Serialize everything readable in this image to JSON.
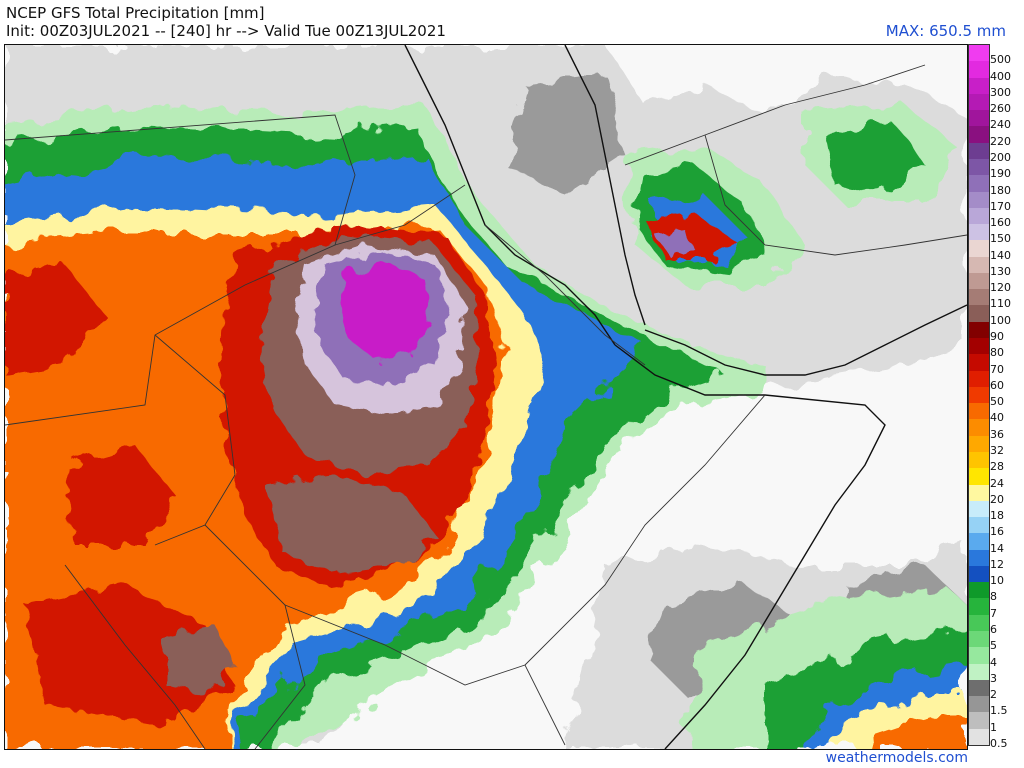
{
  "header": {
    "title": "NCEP GFS Total Precipitation [mm]",
    "subtitle": "Init: 00Z03JUL2021 -- [240] hr --> Valid Tue 00Z13JUL2021",
    "max_label": "MAX: 650.5 mm"
  },
  "footer": {
    "credit": "weathermodels.com"
  },
  "legend": {
    "levels": [
      {
        "label": "500",
        "color": "#f03cf0"
      },
      {
        "label": "400",
        "color": "#e22ae0"
      },
      {
        "label": "300",
        "color": "#c81fc8"
      },
      {
        "label": "260",
        "color": "#b41ab4"
      },
      {
        "label": "240",
        "color": "#a0159c"
      },
      {
        "label": "220",
        "color": "#8a1080"
      },
      {
        "label": "200",
        "color": "#6d3d91"
      },
      {
        "label": "190",
        "color": "#7d56a6"
      },
      {
        "label": "180",
        "color": "#8f70b8"
      },
      {
        "label": "170",
        "color": "#a48cc8"
      },
      {
        "label": "160",
        "color": "#b9a7d8"
      },
      {
        "label": "150",
        "color": "#cdc2e4"
      },
      {
        "label": "140",
        "color": "#ead6d2"
      },
      {
        "label": "130",
        "color": "#d6b8b2"
      },
      {
        "label": "120",
        "color": "#bf9a93"
      },
      {
        "label": "110",
        "color": "#a57c75"
      },
      {
        "label": "100",
        "color": "#8a5e58"
      },
      {
        "label": "90",
        "color": "#820000"
      },
      {
        "label": "80",
        "color": "#a30000"
      },
      {
        "label": "70",
        "color": "#c50a00"
      },
      {
        "label": "60",
        "color": "#e01e00"
      },
      {
        "label": "50",
        "color": "#f03a00"
      },
      {
        "label": "40",
        "color": "#f86a00"
      },
      {
        "label": "36",
        "color": "#fc8c00"
      },
      {
        "label": "32",
        "color": "#ffa800"
      },
      {
        "label": "28",
        "color": "#ffc400"
      },
      {
        "label": "24",
        "color": "#ffe600"
      },
      {
        "label": "20",
        "color": "#fff8a0"
      },
      {
        "label": "18",
        "color": "#c8ecfa"
      },
      {
        "label": "16",
        "color": "#96d2f5"
      },
      {
        "label": "14",
        "color": "#5aaaee"
      },
      {
        "label": "12",
        "color": "#2a78dc"
      },
      {
        "label": "10",
        "color": "#1450c0"
      },
      {
        "label": "8",
        "color": "#0f9a2a"
      },
      {
        "label": "7",
        "color": "#26b43c"
      },
      {
        "label": "6",
        "color": "#48c858"
      },
      {
        "label": "5",
        "color": "#6cd878"
      },
      {
        "label": "4",
        "color": "#96e89e"
      },
      {
        "label": "3",
        "color": "#c0f2c4"
      },
      {
        "label": "2",
        "color": "#6e6e6e"
      },
      {
        "label": "1.5",
        "color": "#969696"
      },
      {
        "label": "1",
        "color": "#bebebe"
      },
      {
        "label": "0.5",
        "color": "#e2e2e2"
      }
    ]
  },
  "map": {
    "background_color": "#f8f8f8",
    "precip_fields": [
      {
        "level": "0.5",
        "color": "#dcdcdc"
      },
      {
        "level": "1.5",
        "color": "#9a9a9a"
      },
      {
        "level": "3",
        "color": "#b8ecb8"
      },
      {
        "level": "8",
        "color": "#1fa036"
      },
      {
        "level": "12",
        "color": "#2a78dc"
      },
      {
        "level": "20",
        "color": "#fff4a0"
      },
      {
        "level": "40",
        "color": "#f86a00"
      },
      {
        "level": "70",
        "color": "#d21400"
      },
      {
        "level": "100",
        "color": "#8a5e58"
      },
      {
        "level": "150",
        "color": "#d6c4dc"
      },
      {
        "level": "200",
        "color": "#8f70b8"
      },
      {
        "level": "300",
        "color": "#c81fc8"
      }
    ]
  }
}
